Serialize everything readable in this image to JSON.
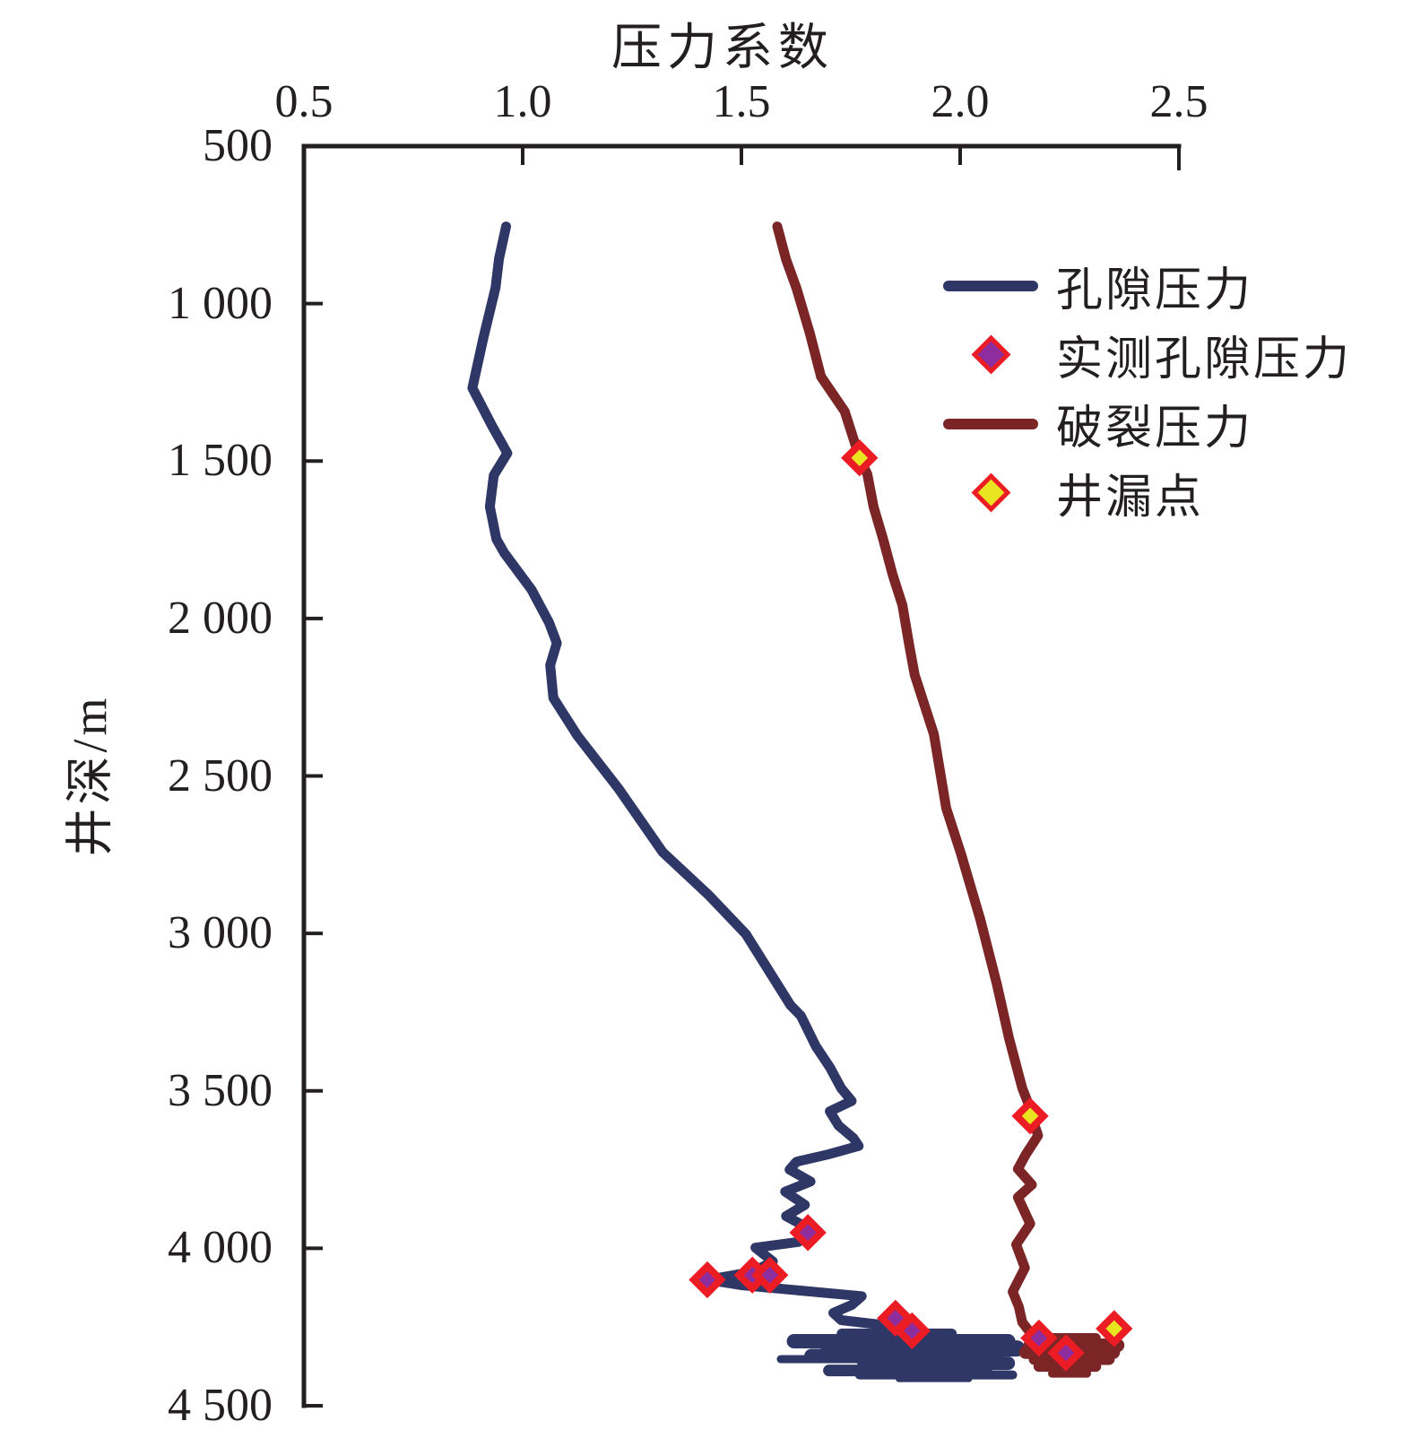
{
  "figure": {
    "title": "压力系数",
    "y_axis_title": "井深/m"
  },
  "legend": {
    "items": [
      {
        "label": "孔隙压力",
        "swatch": "line",
        "color": "#2f3766"
      },
      {
        "label": "实测孔隙压力",
        "swatch": "diamond",
        "fill": "#8e2d9e",
        "stroke": "#ec1c24"
      },
      {
        "label": "破裂压力",
        "swatch": "line",
        "color": "#7b2526"
      },
      {
        "label": "井漏点",
        "swatch": "diamond",
        "fill": "#e8e520",
        "stroke": "#ec1c24"
      }
    ]
  },
  "chart_data": {
    "type": "line",
    "title": "压力系数",
    "xlabel": "压力系数",
    "ylabel": "井深/m",
    "xlim": [
      0.5,
      2.5
    ],
    "ylim": [
      500,
      4500
    ],
    "y_axis_inverted": true,
    "grid": false,
    "legend_position": "upper-right-inside",
    "axis_color": "#231f20",
    "x_ticks": [
      0.5,
      1.0,
      1.5,
      2.0,
      2.5
    ],
    "x_tick_labels": [
      "0.5",
      "1.0",
      "1.5",
      "2.0",
      "2.5"
    ],
    "y_ticks": [
      500,
      1000,
      1500,
      2000,
      2500,
      3000,
      3500,
      4000,
      4500
    ],
    "y_tick_labels": [
      "500",
      "1 000",
      "1 500",
      "2 000",
      "2 500",
      "3 000",
      "3 500",
      "4 000",
      "4 500"
    ],
    "series": [
      {
        "name": "孔隙压力",
        "type": "line",
        "color": "#2f3766",
        "line_width": 11,
        "points": [
          [
            0.962,
            755
          ],
          [
            0.946,
            858
          ],
          [
            0.938,
            950
          ],
          [
            0.91,
            1110
          ],
          [
            0.885,
            1268
          ],
          [
            0.93,
            1388
          ],
          [
            0.965,
            1475
          ],
          [
            0.934,
            1545
          ],
          [
            0.925,
            1645
          ],
          [
            0.94,
            1748
          ],
          [
            0.958,
            1792
          ],
          [
            1.02,
            1908
          ],
          [
            1.06,
            2012
          ],
          [
            1.078,
            2078
          ],
          [
            1.063,
            2148
          ],
          [
            1.07,
            2252
          ],
          [
            1.125,
            2372
          ],
          [
            1.22,
            2542
          ],
          [
            1.32,
            2742
          ],
          [
            1.425,
            2878
          ],
          [
            1.51,
            3002
          ],
          [
            1.612,
            3228
          ],
          [
            1.636,
            3262
          ],
          [
            1.67,
            3358
          ],
          [
            1.702,
            3425
          ],
          [
            1.728,
            3492
          ],
          [
            1.752,
            3532
          ],
          [
            1.702,
            3565
          ],
          [
            1.722,
            3610
          ],
          [
            1.756,
            3650
          ],
          [
            1.768,
            3675
          ],
          [
            1.698,
            3702
          ],
          [
            1.626,
            3725
          ],
          [
            1.61,
            3750
          ],
          [
            1.658,
            3788
          ],
          [
            1.6,
            3820
          ],
          [
            1.645,
            3862
          ],
          [
            1.602,
            3898
          ],
          [
            1.645,
            3930
          ],
          [
            1.652,
            3950
          ],
          [
            1.63,
            3980
          ],
          [
            1.532,
            3998
          ],
          [
            1.572,
            4042
          ],
          [
            1.525,
            4075
          ],
          [
            1.422,
            4100
          ],
          [
            1.5,
            4117
          ],
          [
            1.775,
            4152
          ],
          [
            1.752,
            4180
          ],
          [
            1.71,
            4205
          ],
          [
            1.728,
            4228
          ],
          [
            1.832,
            4245
          ],
          [
            1.892,
            4265
          ],
          [
            1.94,
            4278
          ]
        ]
      },
      {
        "name": "破裂压力",
        "type": "line",
        "color": "#7b2526",
        "line_width": 11,
        "points": [
          [
            1.582,
            755
          ],
          [
            1.602,
            860
          ],
          [
            1.626,
            952
          ],
          [
            1.656,
            1092
          ],
          [
            1.682,
            1232
          ],
          [
            1.736,
            1342
          ],
          [
            1.77,
            1490
          ],
          [
            1.788,
            1542
          ],
          [
            1.802,
            1645
          ],
          [
            1.824,
            1748
          ],
          [
            1.846,
            1862
          ],
          [
            1.868,
            1958
          ],
          [
            1.884,
            2088
          ],
          [
            1.896,
            2178
          ],
          [
            1.94,
            2368
          ],
          [
            1.968,
            2602
          ],
          [
            2.002,
            2748
          ],
          [
            2.046,
            2955
          ],
          [
            2.084,
            3162
          ],
          [
            2.112,
            3335
          ],
          [
            2.142,
            3492
          ],
          [
            2.158,
            3548
          ],
          [
            2.164,
            3582
          ],
          [
            2.178,
            3642
          ],
          [
            2.15,
            3702
          ],
          [
            2.132,
            3748
          ],
          [
            2.164,
            3798
          ],
          [
            2.132,
            3838
          ],
          [
            2.16,
            3922
          ],
          [
            2.128,
            3988
          ],
          [
            2.148,
            4062
          ],
          [
            2.12,
            4138
          ],
          [
            2.134,
            4185
          ],
          [
            2.142,
            4235
          ],
          [
            2.168,
            4282
          ]
        ]
      },
      {
        "name": "实测孔隙压力",
        "type": "scatter",
        "marker": "diamond",
        "fill": "#8e2d9e",
        "stroke": "#ec1c24",
        "points": [
          [
            1.652,
            3950
          ],
          [
            1.525,
            4085
          ],
          [
            1.565,
            4085
          ],
          [
            1.422,
            4100
          ],
          [
            1.852,
            4222
          ],
          [
            1.89,
            4262
          ],
          [
            2.18,
            4285
          ],
          [
            2.242,
            4332
          ]
        ]
      },
      {
        "name": "井漏点",
        "type": "scatter",
        "marker": "diamond",
        "fill": "#e8e520",
        "stroke": "#ec1c24",
        "points": [
          [
            1.77,
            1490
          ],
          [
            2.16,
            3580
          ],
          [
            2.352,
            4255
          ]
        ]
      }
    ],
    "scribbles": [
      {
        "name": "孔隙压力-底部杂乱段",
        "color": "#2f3766",
        "strokes": [
          [
            1.73,
            1.98,
            4272,
            12
          ],
          [
            1.62,
            2.11,
            4295,
            16
          ],
          [
            1.7,
            2.13,
            4318,
            18
          ],
          [
            1.66,
            2.08,
            4342,
            16
          ],
          [
            1.59,
            1.8,
            4352,
            9
          ],
          [
            1.78,
            2.11,
            4365,
            15
          ],
          [
            1.7,
            2.06,
            4388,
            13
          ],
          [
            1.77,
            2.12,
            4402,
            10
          ],
          [
            1.86,
            2.02,
            4415,
            7
          ]
        ]
      },
      {
        "name": "破裂压力-底部杂乱段",
        "color": "#7b2526",
        "strokes": [
          [
            2.2,
            2.31,
            4285,
            11
          ],
          [
            2.16,
            2.36,
            4308,
            15
          ],
          [
            2.15,
            2.35,
            4330,
            15
          ],
          [
            2.17,
            2.34,
            4352,
            13
          ],
          [
            2.18,
            2.31,
            4375,
            12
          ],
          [
            2.21,
            2.29,
            4398,
            9
          ]
        ]
      }
    ]
  }
}
